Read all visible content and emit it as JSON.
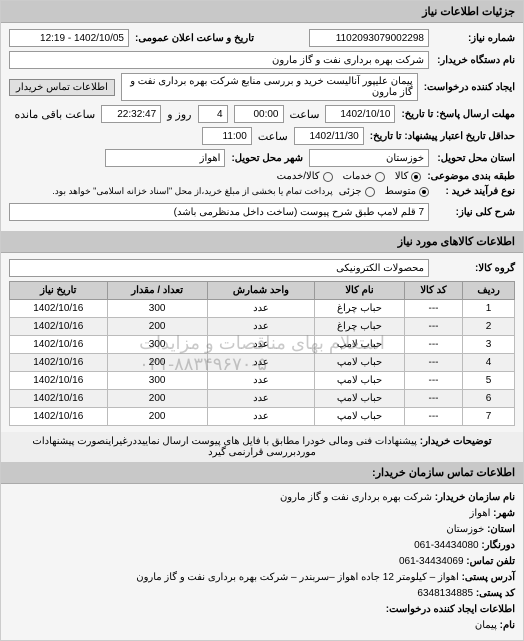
{
  "header": {
    "title": "جزئیات اطلاعات نیاز"
  },
  "form": {
    "req_no_label": "شماره نیاز:",
    "req_no": "1102093079002298",
    "announce_label": "تاریخ و ساعت اعلان عمومی:",
    "announce_val": "1402/10/05 - 12:19",
    "buyer_name_label": "نام دستگاه خریدار:",
    "buyer_name": "شرکت بهره برداری نفت و گاز مارون",
    "creator_label": "ایجاد کننده درخواست:",
    "creator": "پیمان علیپور آنالیست خرید و بررسی منابع شرکت بهره برداری نفت و گاز مارون",
    "contact_btn": "اطلاعات تماس خریدار",
    "deadline_label": "مهلت ارسال پاسخ: تا تاریخ:",
    "deadline_date": "1402/10/10",
    "time_label": "ساعت",
    "deadline_time": "00:00",
    "days_label": "روز و",
    "days_val": "4",
    "remain_time": "22:32:47",
    "remain_label": "ساعت باقی مانده",
    "delivery_deadline_label": "حداقل تاریخ اعتبار پیشنهاد: تا تاریخ:",
    "delivery_date": "1402/11/30",
    "delivery_time": "11:00",
    "province_label": "استان محل تحویل:",
    "province": "خوزستان",
    "city_label": "شهر محل تحویل:",
    "city": "اهواز",
    "pkg_label": "طبقه بندی موضوعی:",
    "pkg_opts": {
      "kala": "کالا",
      "khadamat": "خدمات",
      "both": "کالا/خدمت"
    },
    "process_label": "نوع فرآیند خرید :",
    "process_opts": {
      "avg": "متوسط",
      "urgent": "جزئی"
    },
    "process_note": "پرداخت تمام یا بخشی از مبلغ خرید،از محل \"اسناد خزانه اسلامی\" خواهد بود.",
    "title_label": "شرح کلی نیاز:",
    "title_val": "7 قلم لامپ طبق شرح پیوست (ساخت داخل مدنظرمی باشد)"
  },
  "goods_header": "اطلاعات کالاهای مورد نیاز",
  "group_label": "گروه کالا:",
  "group_val": "محصولات الکترونیکی",
  "table": {
    "cols": [
      "ردیف",
      "کد کالا",
      "نام کالا",
      "واحد شمارش",
      "تعداد / مقدار",
      "تاریخ نیاز"
    ],
    "rows": [
      [
        "1",
        "---",
        "حباب چراغ",
        "عدد",
        "300",
        "1402/10/16"
      ],
      [
        "2",
        "---",
        "حباب چراغ",
        "عدد",
        "200",
        "1402/10/16"
      ],
      [
        "3",
        "---",
        "حباب لامپ",
        "عدد",
        "300",
        "1402/10/16"
      ],
      [
        "4",
        "---",
        "حباب لامپ",
        "عدد",
        "200",
        "1402/10/16"
      ],
      [
        "5",
        "---",
        "حباب لامپ",
        "عدد",
        "300",
        "1402/10/16"
      ],
      [
        "6",
        "---",
        "حباب لامپ",
        "عدد",
        "200",
        "1402/10/16"
      ],
      [
        "7",
        "---",
        "حباب لامپ",
        "عدد",
        "200",
        "1402/10/16"
      ]
    ]
  },
  "watermark": "استعلام بهای مناقصات و مزایدات\n۰۲۱-۸۸۳۴۹۶۷۰-۵",
  "note_label": "توضیحات خریدار:",
  "note_text": "پیشنهادات فنی ومالی خودرا مطابق با فایل های پیوست ارسال نماییددرغیراینصورت پیشنهادات موردبررسی قرارنمی گیرد",
  "contact_header": "اطلاعات تماس سازمان خریدار:",
  "contact": {
    "org_label": "نام سازمان خریدار:",
    "org": "شرکت بهره برداری نفت و گاز مارون",
    "city_label": "شهر:",
    "city": "اهواز",
    "province_label": "استان:",
    "province": "خوزستان",
    "fax_label": "دورنگار:",
    "fax": "34434080-061",
    "tel_label": "تلفن تماس:",
    "tel": "34434069-061",
    "addr_label": "آدرس پستی:",
    "addr": "اهواز – کیلومتر 12 جاده اهواز –سربندر – شرکت بهره برداری نفت و گاز مارون",
    "postcode_label": "کد پستی:",
    "postcode": "6348134885",
    "creator_contact_label": "اطلاعات ایجاد کننده درخواست:",
    "name_label": "نام:",
    "name": "پیمان"
  }
}
